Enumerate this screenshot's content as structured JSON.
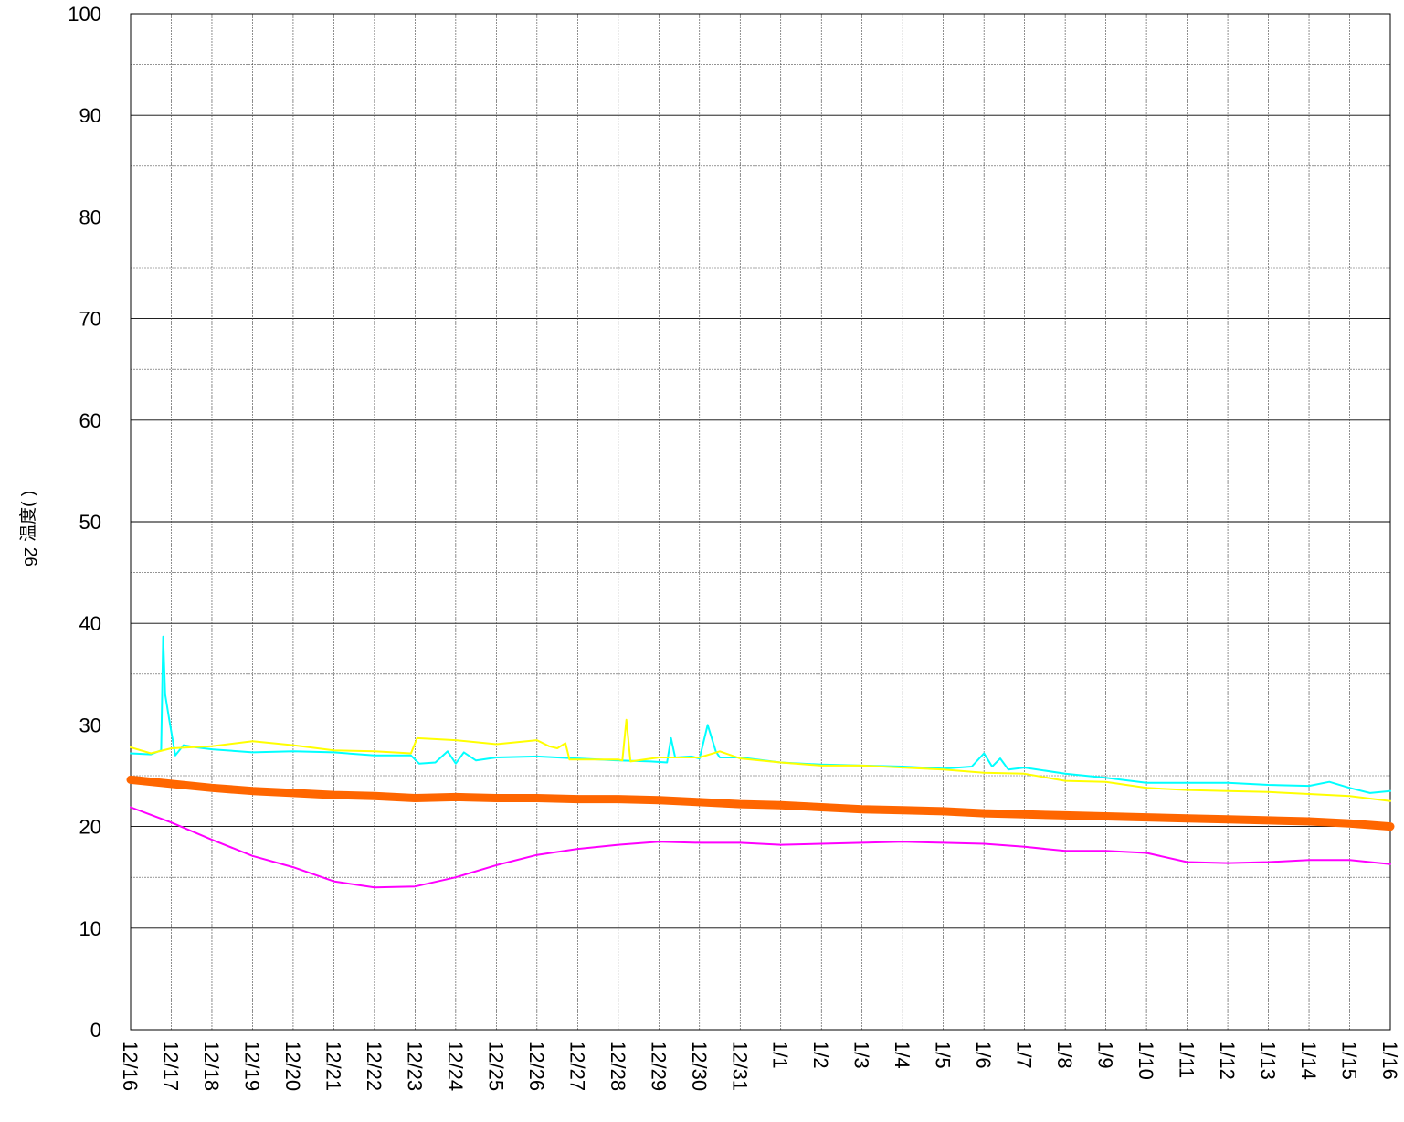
{
  "chart_data": {
    "type": "line",
    "title": "",
    "xlabel": "",
    "ylabel_number": "26",
    "ylabel": "温度(  )",
    "ylim": [
      0,
      100
    ],
    "y_ticks": [
      "0",
      "10",
      "20",
      "30",
      "40",
      "50",
      "60",
      "70",
      "80",
      "90",
      "100"
    ],
    "y_minor_grid_step": 5,
    "x_tick_labels": [
      "12/16",
      "12/17",
      "12/18",
      "12/19",
      "12/20",
      "12/21",
      "12/22",
      "12/23",
      "12/24",
      "12/25",
      "12/26",
      "12/27",
      "12/28",
      "12/29",
      "12/30",
      "12/31",
      "1/1",
      "1/2",
      "1/3",
      "1/4",
      "1/5",
      "1/6",
      "1/7",
      "1/8",
      "1/9",
      "1/10",
      "1/11",
      "1/12",
      "1/13",
      "1/14",
      "1/15",
      "1/16"
    ],
    "x_range_days": [
      0,
      31
    ],
    "grid": true,
    "legend": "none",
    "series": [
      {
        "color": "#00ffff",
        "points": [
          [
            0,
            27.2
          ],
          [
            0.5,
            27.1
          ],
          [
            0.75,
            27.5
          ],
          [
            0.8,
            38.7
          ],
          [
            0.85,
            33
          ],
          [
            0.95,
            30.5
          ],
          [
            1.1,
            27
          ],
          [
            1.3,
            28
          ],
          [
            1.6,
            27.8
          ],
          [
            2,
            27.6
          ],
          [
            3,
            27.3
          ],
          [
            4,
            27.4
          ],
          [
            5,
            27.3
          ],
          [
            6,
            27
          ],
          [
            6.9,
            27
          ],
          [
            7.1,
            26.2
          ],
          [
            7.5,
            26.3
          ],
          [
            7.8,
            27.4
          ],
          [
            8,
            26.2
          ],
          [
            8.2,
            27.3
          ],
          [
            8.5,
            26.5
          ],
          [
            9,
            26.8
          ],
          [
            10,
            26.9
          ],
          [
            11,
            26.7
          ],
          [
            12,
            26.5
          ],
          [
            12.8,
            26.4
          ],
          [
            13.2,
            26.3
          ],
          [
            13.3,
            28.7
          ],
          [
            13.4,
            26.8
          ],
          [
            13.8,
            26.9
          ],
          [
            14,
            26.7
          ],
          [
            14.2,
            30
          ],
          [
            14.4,
            27.4
          ],
          [
            14.5,
            26.8
          ],
          [
            15,
            26.8
          ],
          [
            16,
            26.3
          ],
          [
            17,
            26.1
          ],
          [
            18,
            26
          ],
          [
            19,
            25.9
          ],
          [
            20,
            25.7
          ],
          [
            20.7,
            25.9
          ],
          [
            21,
            27.2
          ],
          [
            21.2,
            25.9
          ],
          [
            21.4,
            26.7
          ],
          [
            21.6,
            25.6
          ],
          [
            22,
            25.8
          ],
          [
            23,
            25.2
          ],
          [
            24,
            24.8
          ],
          [
            25,
            24.3
          ],
          [
            26,
            24.3
          ],
          [
            27,
            24.3
          ],
          [
            28,
            24.1
          ],
          [
            29,
            24
          ],
          [
            29.5,
            24.4
          ],
          [
            30,
            23.8
          ],
          [
            30.5,
            23.3
          ],
          [
            31,
            23.5
          ]
        ]
      },
      {
        "color": "#ffff00",
        "points": [
          [
            0,
            27.8
          ],
          [
            0.5,
            27.2
          ],
          [
            1,
            27.7
          ],
          [
            2,
            27.9
          ],
          [
            3,
            28.4
          ],
          [
            4,
            28
          ],
          [
            5,
            27.5
          ],
          [
            6,
            27.4
          ],
          [
            6.9,
            27.2
          ],
          [
            7.05,
            28.7
          ],
          [
            8,
            28.5
          ],
          [
            9,
            28.1
          ],
          [
            10,
            28.5
          ],
          [
            10.3,
            27.9
          ],
          [
            10.5,
            27.7
          ],
          [
            10.7,
            28.2
          ],
          [
            10.8,
            26.6
          ],
          [
            12,
            26.6
          ],
          [
            12.1,
            26.5
          ],
          [
            12.2,
            30.5
          ],
          [
            12.3,
            26.4
          ],
          [
            13,
            26.8
          ],
          [
            14,
            26.8
          ],
          [
            14.5,
            27.4
          ],
          [
            15,
            26.7
          ],
          [
            16,
            26.3
          ],
          [
            17,
            26
          ],
          [
            18,
            26
          ],
          [
            19,
            25.8
          ],
          [
            20,
            25.6
          ],
          [
            21,
            25.3
          ],
          [
            22,
            25.2
          ],
          [
            23,
            24.5
          ],
          [
            24,
            24.4
          ],
          [
            25,
            23.8
          ],
          [
            26,
            23.6
          ],
          [
            27,
            23.5
          ],
          [
            28,
            23.4
          ],
          [
            29,
            23.2
          ],
          [
            30,
            23
          ],
          [
            31,
            22.5
          ]
        ]
      },
      {
        "color": "#ff6600",
        "points": [
          [
            0,
            24.6
          ],
          [
            1,
            24.2
          ],
          [
            2,
            23.8
          ],
          [
            3,
            23.5
          ],
          [
            4,
            23.3
          ],
          [
            5,
            23.1
          ],
          [
            6,
            23
          ],
          [
            7,
            22.8
          ],
          [
            8,
            22.9
          ],
          [
            9,
            22.8
          ],
          [
            10,
            22.8
          ],
          [
            11,
            22.7
          ],
          [
            12,
            22.7
          ],
          [
            13,
            22.6
          ],
          [
            14,
            22.4
          ],
          [
            15,
            22.2
          ],
          [
            16,
            22.1
          ],
          [
            17,
            21.9
          ],
          [
            18,
            21.7
          ],
          [
            19,
            21.6
          ],
          [
            20,
            21.5
          ],
          [
            21,
            21.3
          ],
          [
            22,
            21.2
          ],
          [
            23,
            21.1
          ],
          [
            24,
            21
          ],
          [
            25,
            20.9
          ],
          [
            26,
            20.8
          ],
          [
            27,
            20.7
          ],
          [
            28,
            20.6
          ],
          [
            29,
            20.5
          ],
          [
            30,
            20.3
          ],
          [
            31,
            20
          ]
        ]
      },
      {
        "color": "#ff00ff",
        "points": [
          [
            0,
            21.9
          ],
          [
            1,
            20.4
          ],
          [
            2,
            18.7
          ],
          [
            3,
            17.1
          ],
          [
            4,
            16
          ],
          [
            5,
            14.6
          ],
          [
            6,
            14
          ],
          [
            7,
            14.1
          ],
          [
            8,
            15
          ],
          [
            9,
            16.2
          ],
          [
            10,
            17.2
          ],
          [
            11,
            17.8
          ],
          [
            12,
            18.2
          ],
          [
            13,
            18.5
          ],
          [
            14,
            18.4
          ],
          [
            15,
            18.4
          ],
          [
            16,
            18.2
          ],
          [
            17,
            18.3
          ],
          [
            18,
            18.4
          ],
          [
            19,
            18.5
          ],
          [
            20,
            18.4
          ],
          [
            21,
            18.3
          ],
          [
            22,
            18
          ],
          [
            23,
            17.6
          ],
          [
            24,
            17.6
          ],
          [
            25,
            17.4
          ],
          [
            26,
            16.5
          ],
          [
            27,
            16.4
          ],
          [
            28,
            16.5
          ],
          [
            29,
            16.7
          ],
          [
            30,
            16.7
          ],
          [
            31,
            16.3
          ]
        ]
      }
    ]
  }
}
